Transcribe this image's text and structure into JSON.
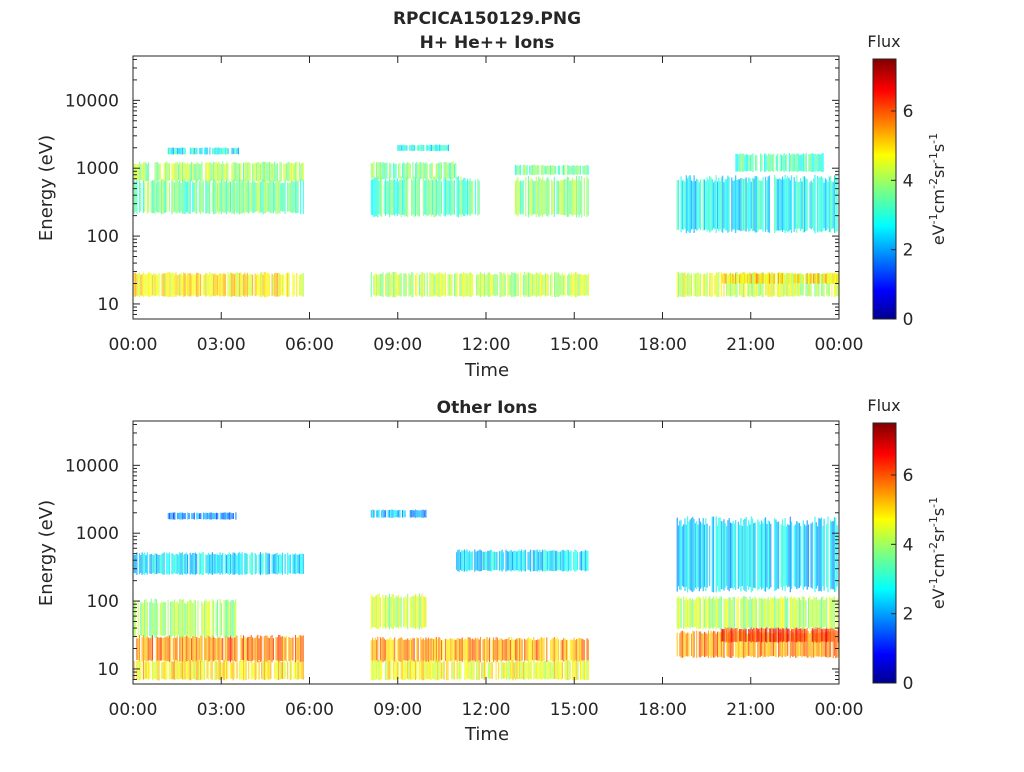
{
  "figure": {
    "file_title": "RPCICA150129.PNG"
  },
  "colorbar": {
    "label": "Flux",
    "unit_main": "eV",
    "unit_parts": [
      {
        "t": "eV"
      },
      {
        "t": "-1",
        "sup": true
      },
      {
        "t": "cm"
      },
      {
        "t": "-2",
        "sup": true
      },
      {
        "t": "sr"
      },
      {
        "t": "-1",
        "sup": true
      },
      {
        "t": "s"
      },
      {
        "t": "-1",
        "sup": true
      }
    ],
    "ticks": [
      0,
      2,
      4,
      6
    ],
    "range": [
      0,
      7.5
    ],
    "colormap": "jet"
  },
  "chart_data": [
    {
      "type": "heatmap",
      "title": "H+ He++ Ions",
      "xlabel": "Time",
      "ylabel": "Energy (eV)",
      "x_ticks": [
        "00:00",
        "03:00",
        "06:00",
        "09:00",
        "12:00",
        "15:00",
        "18:00",
        "21:00",
        "00:00"
      ],
      "x_range_hours": [
        0,
        24
      ],
      "y_scale": "log",
      "y_range": [
        6,
        45000
      ],
      "y_ticks": [
        10,
        100,
        1000,
        10000
      ],
      "y_tick_labels": [
        "10",
        "100",
        "1000",
        "10000"
      ],
      "grid": false,
      "data_gaps_hours": [
        [
          5.8,
          8.0
        ],
        [
          15.5,
          18.5
        ]
      ],
      "bands": [
        {
          "t0": 0.0,
          "t1": 5.8,
          "e0": 13,
          "e1": 28,
          "flux": 4.8
        },
        {
          "t0": 0.0,
          "t1": 5.8,
          "e0": 220,
          "e1": 650,
          "flux": 3.6
        },
        {
          "t0": 0.0,
          "t1": 5.8,
          "e0": 650,
          "e1": 1200,
          "flux": 4.0
        },
        {
          "t0": 1.2,
          "t1": 3.6,
          "e0": 1600,
          "e1": 2000,
          "flux": 2.8
        },
        {
          "t0": 8.1,
          "t1": 15.5,
          "e0": 13,
          "e1": 28,
          "flux": 4.2
        },
        {
          "t0": 8.1,
          "t1": 11.8,
          "e0": 200,
          "e1": 700,
          "flux": 3.4
        },
        {
          "t0": 8.1,
          "t1": 11.0,
          "e0": 700,
          "e1": 1200,
          "flux": 3.7
        },
        {
          "t0": 9.0,
          "t1": 10.8,
          "e0": 1800,
          "e1": 2200,
          "flux": 2.9
        },
        {
          "t0": 13.0,
          "t1": 15.5,
          "e0": 200,
          "e1": 700,
          "flux": 3.8
        },
        {
          "t0": 13.0,
          "t1": 15.5,
          "e0": 800,
          "e1": 1100,
          "flux": 3.5
        },
        {
          "t0": 18.5,
          "t1": 24.0,
          "e0": 13,
          "e1": 28,
          "flux": 4.3
        },
        {
          "t0": 20.0,
          "t1": 24.0,
          "e0": 20,
          "e1": 28,
          "flux": 5.0
        },
        {
          "t0": 18.5,
          "t1": 24.0,
          "e0": 120,
          "e1": 700,
          "flux": 2.8
        },
        {
          "t0": 20.5,
          "t1": 23.5,
          "e0": 900,
          "e1": 1600,
          "flux": 3.3
        }
      ]
    },
    {
      "type": "heatmap",
      "title": "Other Ions",
      "xlabel": "Time",
      "ylabel": "Energy (eV)",
      "x_ticks": [
        "00:00",
        "03:00",
        "06:00",
        "09:00",
        "12:00",
        "15:00",
        "18:00",
        "21:00",
        "00:00"
      ],
      "x_range_hours": [
        0,
        24
      ],
      "y_scale": "log",
      "y_range": [
        6,
        45000
      ],
      "y_ticks": [
        10,
        100,
        1000,
        10000
      ],
      "y_tick_labels": [
        "10",
        "100",
        "1000",
        "10000"
      ],
      "grid": false,
      "data_gaps_hours": [
        [
          5.8,
          8.0
        ],
        [
          15.5,
          18.5
        ]
      ],
      "bands": [
        {
          "t0": 0.0,
          "t1": 5.8,
          "e0": 13,
          "e1": 30,
          "flux": 5.6
        },
        {
          "t0": 0.0,
          "t1": 5.8,
          "e0": 7,
          "e1": 13,
          "flux": 4.9
        },
        {
          "t0": 0.0,
          "t1": 3.5,
          "e0": 30,
          "e1": 100,
          "flux": 4.0
        },
        {
          "t0": 0.0,
          "t1": 5.8,
          "e0": 250,
          "e1": 500,
          "flux": 2.6
        },
        {
          "t0": 1.2,
          "t1": 3.5,
          "e0": 1600,
          "e1": 2000,
          "flux": 1.9
        },
        {
          "t0": 8.1,
          "t1": 15.5,
          "e0": 13,
          "e1": 28,
          "flux": 5.4
        },
        {
          "t0": 8.1,
          "t1": 10.0,
          "e0": 40,
          "e1": 120,
          "flux": 4.3
        },
        {
          "t0": 8.1,
          "t1": 15.5,
          "e0": 7,
          "e1": 13,
          "flux": 4.6
        },
        {
          "t0": 11.0,
          "t1": 15.5,
          "e0": 280,
          "e1": 550,
          "flux": 2.6
        },
        {
          "t0": 8.1,
          "t1": 10.0,
          "e0": 1700,
          "e1": 2200,
          "flux": 2.3
        },
        {
          "t0": 18.5,
          "t1": 24.0,
          "e0": 15,
          "e1": 35,
          "flux": 5.5
        },
        {
          "t0": 20.0,
          "t1": 24.0,
          "e0": 25,
          "e1": 40,
          "flux": 6.3
        },
        {
          "t0": 18.5,
          "t1": 24.0,
          "e0": 40,
          "e1": 110,
          "flux": 4.1
        },
        {
          "t0": 18.5,
          "t1": 24.0,
          "e0": 150,
          "e1": 1500,
          "flux": 2.5
        }
      ]
    }
  ]
}
